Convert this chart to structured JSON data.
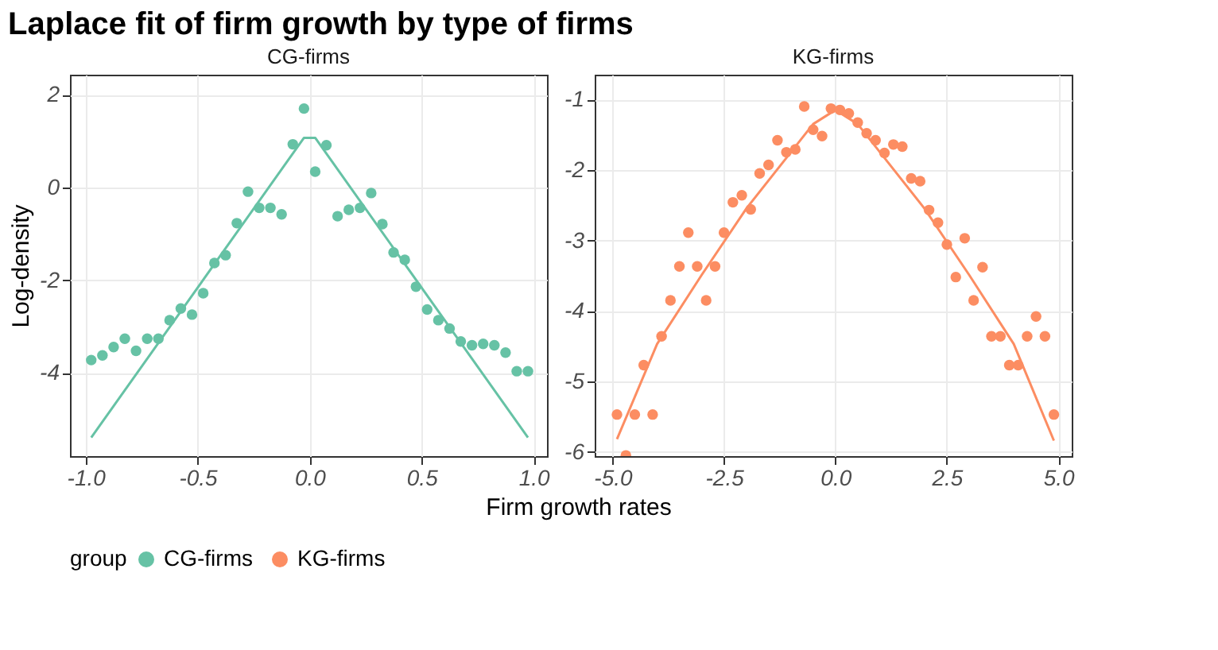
{
  "chart_data": [
    {
      "type": "scatter",
      "title": "Laplace fit of firm growth by type of firms",
      "subtitle": "CG-firms",
      "xlabel": "Firm growth rates",
      "ylabel": "Log-density",
      "legend_title": "group",
      "legend": "bottom",
      "grid": true,
      "xlim": [
        -1.07,
        1.06
      ],
      "ylim": [
        -5.79,
        2.43
      ],
      "xticks": [
        {
          "value": -1,
          "label": "-1.0"
        },
        {
          "value": -0.5,
          "label": "-0.5"
        },
        {
          "value": 0,
          "label": "0.0"
        },
        {
          "value": 0.5,
          "label": "0.5"
        },
        {
          "value": 1,
          "label": "1.0"
        }
      ],
      "yticks": [
        -4,
        -2,
        0,
        2
      ],
      "series": [
        {
          "name": "CG-firms",
          "marker": "circle",
          "color": "#66c2a5",
          "x": [
            -0.975,
            -0.925,
            -0.875,
            -0.825,
            -0.775,
            -0.725,
            -0.675,
            -0.625,
            -0.575,
            -0.525,
            -0.475,
            -0.425,
            -0.375,
            -0.325,
            -0.275,
            -0.225,
            -0.175,
            -0.125,
            -0.075,
            -0.025,
            0.025,
            0.075,
            0.125,
            0.175,
            0.225,
            0.275,
            0.325,
            0.375,
            0.425,
            0.475,
            0.525,
            0.575,
            0.625,
            0.675,
            0.725,
            0.775,
            0.825,
            0.875,
            0.925,
            0.975
          ],
          "values": [
            -3.72,
            -3.62,
            -3.44,
            -3.26,
            -3.52,
            -3.26,
            -3.26,
            -2.86,
            -2.61,
            -2.74,
            -2.28,
            -1.63,
            -1.46,
            -0.77,
            -0.09,
            -0.44,
            -0.44,
            -0.58,
            0.93,
            1.7,
            0.34,
            0.91,
            -0.62,
            -0.48,
            -0.44,
            -0.12,
            -0.79,
            -1.4,
            -1.56,
            -2.14,
            -2.63,
            -2.86,
            -3.04,
            -3.32,
            -3.4,
            -3.37,
            -3.4,
            -3.56,
            -3.96,
            -3.96
          ]
        },
        {
          "type": "line",
          "color": "#66c2a5",
          "x": [
            -0.975,
            -0.025,
            0.025,
            0.975
          ],
          "values": [
            -5.39,
            1.07,
            1.07,
            -5.39
          ]
        }
      ]
    },
    {
      "type": "scatter",
      "subtitle": "KG-firms",
      "grid": true,
      "xlim": [
        -5.4,
        5.3
      ],
      "ylim": [
        -6.06,
        -0.65
      ],
      "xticks": [
        {
          "value": -5,
          "label": "-5.0"
        },
        {
          "value": -2.5,
          "label": "-2.5"
        },
        {
          "value": 0,
          "label": "0.0"
        },
        {
          "value": 2.5,
          "label": "2.5"
        },
        {
          "value": 5,
          "label": "5.0"
        }
      ],
      "yticks": [
        -6,
        -5,
        -4,
        -3,
        -2,
        -1
      ],
      "series": [
        {
          "name": "KG-firms",
          "marker": "circle",
          "color": "#fc8d62",
          "x": [
            -4.9,
            -4.7,
            -4.5,
            -4.3,
            -4.1,
            -3.9,
            -3.7,
            -3.5,
            -3.3,
            -3.1,
            -2.9,
            -2.7,
            -2.5,
            -2.3,
            -2.1,
            -1.9,
            -1.7,
            -1.5,
            -1.3,
            -1.1,
            -0.9,
            -0.7,
            -0.5,
            -0.3,
            -0.1,
            0.1,
            0.3,
            0.5,
            0.7,
            0.9,
            1.1,
            1.3,
            1.5,
            1.7,
            1.9,
            2.1,
            2.3,
            2.5,
            2.7,
            2.9,
            3.1,
            3.3,
            3.5,
            3.7,
            3.9,
            4.1,
            4.3,
            4.5,
            4.7,
            4.9
          ],
          "values": [
            -5.47,
            -6.05,
            -5.47,
            -4.77,
            -5.47,
            -4.36,
            -3.85,
            -3.37,
            -2.89,
            -3.37,
            -3.85,
            -3.37,
            -2.89,
            -2.46,
            -2.36,
            -2.56,
            -2.05,
            -1.93,
            -1.58,
            -1.75,
            -1.71,
            -1.1,
            -1.43,
            -1.52,
            -1.13,
            -1.15,
            -1.2,
            -1.33,
            -1.48,
            -1.58,
            -1.76,
            -1.64,
            -1.67,
            -2.12,
            -2.16,
            -2.57,
            -2.75,
            -3.06,
            -3.52,
            -2.97,
            -3.85,
            -3.38,
            -4.36,
            -4.36,
            -4.77,
            -4.77,
            -4.36,
            -4.08,
            -4.36,
            -5.47
          ]
        },
        {
          "type": "line",
          "color": "#fc8d62",
          "x": [
            -4.9,
            -4.0,
            -3.0,
            -2.0,
            -1.0,
            -0.5,
            0.0,
            0.5,
            1.0,
            2.0,
            3.0,
            4.0,
            4.9
          ],
          "values": [
            -5.82,
            -4.47,
            -3.49,
            -2.55,
            -1.75,
            -1.35,
            -1.15,
            -1.35,
            -1.75,
            -2.55,
            -3.49,
            -4.47,
            -5.84
          ]
        }
      ]
    }
  ]
}
